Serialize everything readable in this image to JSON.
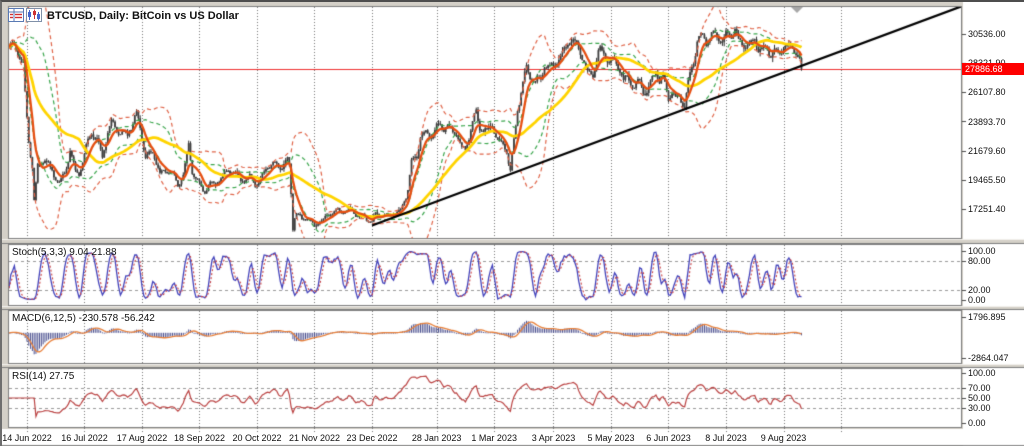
{
  "window": {
    "title": "BTCUSD, Daily: BitCoin vs US Dollar"
  },
  "toolbar_icons": [
    {
      "id": "quotes-grid-icon"
    },
    {
      "id": "candle-chart-icon"
    }
  ],
  "panels": {
    "stoch_label": "Stoch(5,3,3) 9.04 21.88",
    "macd_label": "MACD(6,12,5) -230.578 -56.242",
    "rsi_label": "RSI(14) 27.75"
  },
  "price_tag": "27886.68",
  "colors": {
    "window_bg": "#d4d0c8",
    "panel_bg": "#ffffff",
    "frame": "#7e7e7e",
    "grid": "#757575",
    "level_dash": "#9a9a9a",
    "candle": "#3f3f3f",
    "ma_fast": "#e64f12",
    "ma_slow": "#ffd400",
    "band_inner": "#3aa64c",
    "band_outer": "#e06549",
    "trendline": "#000000",
    "price_line": "#f03030",
    "price_tag_bg": "#fe0000",
    "stoch_main": "#4444bc",
    "stoch_signal": "#cc4545",
    "macd_hist": "#4c5190",
    "macd_signal": "#e8803a",
    "rsi_line": "#bb4343",
    "shift_marker": "#a8a8a8"
  },
  "chart_data": {
    "type": "candlestick",
    "symbol": "BTCUSD",
    "timeframe": "Daily",
    "bars_total": 442,
    "y_axis": {
      "ticks": [
        {
          "label": "30536.00",
          "value": 30536.0
        },
        {
          "label": "28321.90",
          "value": 28321.9
        },
        {
          "label": "26107.80",
          "value": 26107.8
        },
        {
          "label": "23893.70",
          "value": 23893.7
        },
        {
          "label": "21679.60",
          "value": 21679.6
        },
        {
          "label": "19465.50",
          "value": 19465.5
        },
        {
          "label": "17251.40",
          "value": 17251.4
        }
      ]
    },
    "x_axis": {
      "ticks": [
        {
          "label": "14 Jun 2022",
          "day": 10
        },
        {
          "label": "16 Jul 2022",
          "day": 42
        },
        {
          "label": "17 Aug 2022",
          "day": 74
        },
        {
          "label": "18 Sep 2022",
          "day": 106
        },
        {
          "label": "20 Oct 2022",
          "day": 138
        },
        {
          "label": "21 Nov 2022",
          "day": 170
        },
        {
          "label": "23 Dec 2022",
          "day": 202
        },
        {
          "label": "28 Jan 2023",
          "day": 238
        },
        {
          "label": "1 Mar 2023",
          "day": 270
        },
        {
          "label": "3 Apr 2023",
          "day": 303
        },
        {
          "label": "5 May 2023",
          "day": 335
        },
        {
          "label": "6 Jun 2023",
          "day": 367
        },
        {
          "label": "8 Jul 2023",
          "day": 399
        },
        {
          "label": "9 Aug 2023",
          "day": 431
        }
      ],
      "grid_extra_days": [
        463
      ]
    },
    "close_anchors": [
      [
        0,
        29200
      ],
      [
        3,
        29800
      ],
      [
        6,
        29100
      ],
      [
        8,
        28300
      ],
      [
        9,
        26300
      ],
      [
        11,
        22500
      ],
      [
        13,
        20400
      ],
      [
        14,
        17800
      ],
      [
        16,
        20400
      ],
      [
        20,
        20800
      ],
      [
        24,
        20200
      ],
      [
        28,
        19200
      ],
      [
        31,
        20100
      ],
      [
        34,
        21600
      ],
      [
        37,
        20000
      ],
      [
        39,
        19900
      ],
      [
        43,
        22000
      ],
      [
        46,
        23300
      ],
      [
        49,
        22600
      ],
      [
        52,
        21200
      ],
      [
        55,
        22900
      ],
      [
        57,
        23700
      ],
      [
        60,
        23300
      ],
      [
        63,
        23000
      ],
      [
        66,
        23100
      ],
      [
        69,
        23900
      ],
      [
        71,
        24400
      ],
      [
        73,
        23200
      ],
      [
        76,
        20900
      ],
      [
        80,
        21500
      ],
      [
        84,
        20000
      ],
      [
        87,
        20300
      ],
      [
        89,
        20100
      ],
      [
        92,
        19600
      ],
      [
        94,
        18800
      ],
      [
        97,
        19900
      ],
      [
        100,
        22200
      ],
      [
        102,
        20200
      ],
      [
        104,
        19700
      ],
      [
        107,
        18900
      ],
      [
        109,
        18500
      ],
      [
        112,
        19000
      ],
      [
        115,
        19100
      ],
      [
        118,
        19600
      ],
      [
        122,
        20300
      ],
      [
        125,
        20000
      ],
      [
        128,
        19500
      ],
      [
        131,
        19200
      ],
      [
        134,
        19700
      ],
      [
        137,
        19100
      ],
      [
        140,
        19600
      ],
      [
        144,
        20800
      ],
      [
        147,
        20600
      ],
      [
        150,
        20300
      ],
      [
        152,
        20200
      ],
      [
        155,
        21000
      ],
      [
        156,
        20600
      ],
      [
        157,
        18500
      ],
      [
        158,
        15900
      ],
      [
        159,
        16800
      ],
      [
        160,
        17000
      ],
      [
        162,
        16700
      ],
      [
        163,
        16400
      ],
      [
        166,
        16700
      ],
      [
        170,
        15800
      ],
      [
        172,
        16200
      ],
      [
        175,
        16500
      ],
      [
        179,
        17100
      ],
      [
        183,
        17100
      ],
      [
        186,
        16900
      ],
      [
        190,
        17100
      ],
      [
        193,
        16800
      ],
      [
        196,
        16700
      ],
      [
        200,
        16500
      ],
      [
        202,
        16300
      ],
      [
        204,
        16850
      ],
      [
        208,
        16700
      ],
      [
        211,
        16600
      ],
      [
        214,
        16950
      ],
      [
        218,
        17200
      ],
      [
        221,
        18200
      ],
      [
        222,
        18850
      ],
      [
        224,
        20900
      ],
      [
        227,
        21100
      ],
      [
        229,
        22700
      ],
      [
        231,
        22700
      ],
      [
        233,
        23000
      ],
      [
        235,
        23000
      ],
      [
        238,
        23750
      ],
      [
        240,
        23700
      ],
      [
        242,
        23200
      ],
      [
        244,
        23400
      ],
      [
        247,
        22950
      ],
      [
        249,
        22950
      ],
      [
        252,
        21800
      ],
      [
        254,
        21800
      ],
      [
        257,
        23500
      ],
      [
        260,
        24600
      ],
      [
        262,
        23200
      ],
      [
        264,
        23200
      ],
      [
        266,
        23000
      ],
      [
        269,
        23500
      ],
      [
        272,
        22400
      ],
      [
        275,
        22350
      ],
      [
        277,
        21700
      ],
      [
        279,
        20100
      ],
      [
        281,
        22200
      ],
      [
        283,
        24700
      ],
      [
        285,
        26000
      ],
      [
        288,
        28000
      ],
      [
        290,
        27500
      ],
      [
        293,
        27250
      ],
      [
        296,
        27100
      ],
      [
        298,
        28300
      ],
      [
        301,
        28000
      ],
      [
        304,
        28200
      ],
      [
        307,
        28700
      ],
      [
        310,
        29650
      ],
      [
        312,
        30400
      ],
      [
        314,
        30400
      ],
      [
        317,
        29400
      ],
      [
        319,
        28800
      ],
      [
        322,
        27300
      ],
      [
        325,
        27500
      ],
      [
        328,
        29500
      ],
      [
        330,
        29300
      ],
      [
        333,
        28800
      ],
      [
        335,
        28600
      ],
      [
        337,
        28450
      ],
      [
        340,
        27600
      ],
      [
        342,
        26800
      ],
      [
        345,
        27000
      ],
      [
        348,
        26800
      ],
      [
        351,
        26900
      ],
      [
        353,
        26300
      ],
      [
        355,
        26300
      ],
      [
        358,
        27200
      ],
      [
        360,
        27700
      ],
      [
        362,
        26900
      ],
      [
        364,
        27200
      ],
      [
        367,
        25700
      ],
      [
        369,
        26300
      ],
      [
        371,
        25600
      ],
      [
        373,
        25900
      ],
      [
        376,
        25100
      ],
      [
        378,
        26500
      ],
      [
        381,
        28300
      ],
      [
        383,
        30000
      ],
      [
        386,
        30500
      ],
      [
        388,
        30100
      ],
      [
        391,
        30450
      ],
      [
        393,
        30300
      ],
      [
        395,
        29900
      ],
      [
        397,
        29900
      ],
      [
        399,
        30300
      ],
      [
        402,
        30600
      ],
      [
        404,
        31300
      ],
      [
        406,
        30300
      ],
      [
        408,
        29900
      ],
      [
        410,
        29900
      ],
      [
        413,
        29800
      ],
      [
        415,
        30000
      ],
      [
        417,
        29300
      ],
      [
        419,
        29200
      ],
      [
        421,
        29300
      ],
      [
        424,
        29150
      ],
      [
        426,
        29500
      ],
      [
        428,
        29400
      ],
      [
        430,
        29450
      ],
      [
        432,
        29550
      ],
      [
        435,
        29400
      ],
      [
        437,
        29200
      ],
      [
        439,
        28700
      ],
      [
        440,
        28300
      ],
      [
        441,
        27886.68
      ]
    ],
    "overlays": [
      {
        "name": "ma-fast",
        "type": "lwma",
        "period": 10,
        "color_key": "ma_fast"
      },
      {
        "name": "ma-slow",
        "type": "sma",
        "period": 40,
        "color_key": "ma_slow"
      },
      {
        "name": "bands-inner",
        "type": "bollinger",
        "period": 20,
        "deviation": 1,
        "color_key": "band_inner"
      },
      {
        "name": "bands-outer",
        "type": "bollinger",
        "period": 20,
        "deviation": 2,
        "color_key": "band_outer"
      }
    ],
    "trendline": {
      "from_day": 202,
      "from_price": 16000,
      "to_day": 532,
      "to_price": 32737
    },
    "horizontal_line": {
      "price": 27886.68
    },
    "indicators": {
      "stoch": {
        "label": "Stoch(5,3,3) 9.04 21.88",
        "params": [
          5,
          3,
          3
        ],
        "current_main": 9.04,
        "current_signal": 21.88,
        "levels": [
          80,
          20
        ],
        "ticks": [
          {
            "label": "100.00",
            "value": 100
          },
          {
            "label": "80.00",
            "value": 80
          },
          {
            "label": "20.00",
            "value": 20
          },
          {
            "label": "0.00",
            "value": 0
          }
        ]
      },
      "macd": {
        "label": "MACD(6,12,5) -230.578 -56.242",
        "params": [
          6,
          12,
          5
        ],
        "current_main": -230.578,
        "current_signal": -56.242,
        "ticks": [
          {
            "label": "1796.895",
            "value": 1796.895
          },
          {
            "label": "-2864.047",
            "value": -2864.047
          }
        ]
      },
      "rsi": {
        "label": "RSI(14) 27.75",
        "params": [
          14
        ],
        "current": 27.75,
        "levels": [
          70,
          50,
          30
        ],
        "ticks": [
          {
            "label": "100.00",
            "value": 100
          },
          {
            "label": "70.00",
            "value": 70
          },
          {
            "label": "50.00",
            "value": 50
          },
          {
            "label": "30.00",
            "value": 30
          },
          {
            "label": "0.00",
            "value": 0
          }
        ]
      }
    }
  }
}
